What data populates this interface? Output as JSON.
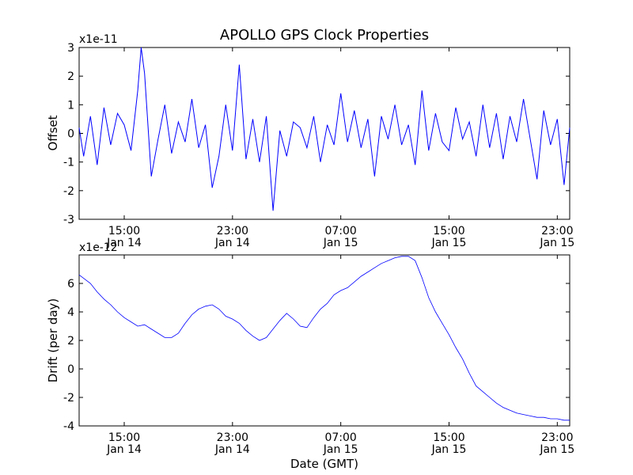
{
  "chart_data": [
    {
      "type": "line",
      "title": "APOLLO GPS Clock Properties",
      "xlabel": "",
      "ylabel": "Offset",
      "y_multiplier": "x1e-11",
      "ylim": [
        -3,
        3
      ],
      "yticks": [
        -3,
        -2,
        -1,
        0,
        1,
        2,
        3
      ],
      "xlim": [
        "Jan 14 11:40",
        "Jan 15 23:55"
      ],
      "xticks": [
        {
          "time": "Jan 14 15:00",
          "line1": "15:00",
          "line2": "Jan 14"
        },
        {
          "time": "Jan 14 23:00",
          "line1": "23:00",
          "line2": "Jan 14"
        },
        {
          "time": "Jan 15 07:00",
          "line1": "07:00",
          "line2": "Jan 15"
        },
        {
          "time": "Jan 15 15:00",
          "line1": "15:00",
          "line2": "Jan 15"
        },
        {
          "time": "Jan 15 23:00",
          "line1": "23:00",
          "line2": "Jan 15"
        }
      ],
      "color": "#0000ff",
      "series": [
        {
          "x": [
            "Jan 14 11:40",
            "Jan 14 12:00",
            "Jan 14 12:30",
            "Jan 14 13:00",
            "Jan 14 13:30",
            "Jan 14 14:00",
            "Jan 14 14:30",
            "Jan 14 15:00",
            "Jan 14 15:30",
            "Jan 14 16:00",
            "Jan 14 16:15",
            "Jan 14 16:30",
            "Jan 14 17:00",
            "Jan 14 17:30",
            "Jan 14 18:00",
            "Jan 14 18:30",
            "Jan 14 19:00",
            "Jan 14 19:30",
            "Jan 14 20:00",
            "Jan 14 20:30",
            "Jan 14 21:00",
            "Jan 14 21:30",
            "Jan 14 22:00",
            "Jan 14 22:30",
            "Jan 14 23:00",
            "Jan 14 23:30",
            "Jan 15 00:00",
            "Jan 15 00:30",
            "Jan 15 01:00",
            "Jan 15 01:30",
            "Jan 15 02:00",
            "Jan 15 02:30",
            "Jan 15 03:00",
            "Jan 15 03:30",
            "Jan 15 04:00",
            "Jan 15 04:30",
            "Jan 15 05:00",
            "Jan 15 05:30",
            "Jan 15 06:00",
            "Jan 15 06:30",
            "Jan 15 07:00",
            "Jan 15 07:30",
            "Jan 15 08:00",
            "Jan 15 08:30",
            "Jan 15 09:00",
            "Jan 15 09:30",
            "Jan 15 10:00",
            "Jan 15 10:30",
            "Jan 15 11:00",
            "Jan 15 11:30",
            "Jan 15 12:00",
            "Jan 15 12:30",
            "Jan 15 13:00",
            "Jan 15 13:30",
            "Jan 15 14:00",
            "Jan 15 14:30",
            "Jan 15 15:00",
            "Jan 15 15:30",
            "Jan 15 16:00",
            "Jan 15 16:30",
            "Jan 15 17:00",
            "Jan 15 17:30",
            "Jan 15 18:00",
            "Jan 15 18:30",
            "Jan 15 19:00",
            "Jan 15 19:30",
            "Jan 15 20:00",
            "Jan 15 20:30",
            "Jan 15 21:00",
            "Jan 15 21:30",
            "Jan 15 22:00",
            "Jan 15 22:30",
            "Jan 15 23:00",
            "Jan 15 23:30",
            "Jan 15 23:55"
          ],
          "values": [
            0.2,
            -0.8,
            0.6,
            -1.1,
            0.9,
            -0.4,
            0.7,
            0.3,
            -0.6,
            1.5,
            3.0,
            2.1,
            -1.5,
            -0.2,
            1.0,
            -0.7,
            0.4,
            -0.3,
            1.2,
            -0.5,
            0.3,
            -1.9,
            -0.8,
            1.0,
            -0.6,
            2.4,
            -0.9,
            0.5,
            -1.0,
            0.6,
            -2.7,
            0.1,
            -0.8,
            0.4,
            0.2,
            -0.5,
            0.6,
            -1.0,
            0.3,
            -0.4,
            1.4,
            -0.3,
            0.8,
            -0.5,
            0.5,
            -1.5,
            0.6,
            -0.2,
            1.0,
            -0.4,
            0.3,
            -1.1,
            1.5,
            -0.6,
            0.7,
            -0.3,
            -0.6,
            0.9,
            -0.2,
            0.4,
            -0.8,
            1.0,
            -0.5,
            0.7,
            -0.9,
            0.6,
            -0.3,
            1.2,
            -0.2,
            -1.6,
            0.8,
            -0.4,
            0.5,
            -1.8,
            0.2
          ]
        }
      ]
    },
    {
      "type": "line",
      "title": "",
      "xlabel": "Date (GMT)",
      "ylabel": "Drift (per day)",
      "y_multiplier": "x1e-12",
      "ylim": [
        -4,
        8
      ],
      "yticks": [
        -4,
        -2,
        0,
        2,
        4,
        6
      ],
      "xlim": [
        "Jan 14 11:40",
        "Jan 15 23:55"
      ],
      "xticks": [
        {
          "time": "Jan 14 15:00",
          "line1": "15:00",
          "line2": "Jan 14"
        },
        {
          "time": "Jan 14 23:00",
          "line1": "23:00",
          "line2": "Jan 14"
        },
        {
          "time": "Jan 15 07:00",
          "line1": "07:00",
          "line2": "Jan 15"
        },
        {
          "time": "Jan 15 15:00",
          "line1": "15:00",
          "line2": "Jan 15"
        },
        {
          "time": "Jan 15 23:00",
          "line1": "23:00",
          "line2": "Jan 15"
        }
      ],
      "color": "#0000ff",
      "series": [
        {
          "x": [
            "Jan 14 11:40",
            "Jan 14 12:30",
            "Jan 14 13:00",
            "Jan 14 13:30",
            "Jan 14 14:00",
            "Jan 14 14:30",
            "Jan 14 15:00",
            "Jan 14 15:30",
            "Jan 14 16:00",
            "Jan 14 16:30",
            "Jan 14 17:00",
            "Jan 14 17:30",
            "Jan 14 18:00",
            "Jan 14 18:30",
            "Jan 14 19:00",
            "Jan 14 19:30",
            "Jan 14 20:00",
            "Jan 14 20:30",
            "Jan 14 21:00",
            "Jan 14 21:30",
            "Jan 14 22:00",
            "Jan 14 22:30",
            "Jan 14 23:00",
            "Jan 14 23:30",
            "Jan 15 00:00",
            "Jan 15 00:30",
            "Jan 15 01:00",
            "Jan 15 01:30",
            "Jan 15 02:00",
            "Jan 15 02:30",
            "Jan 15 03:00",
            "Jan 15 03:30",
            "Jan 15 04:00",
            "Jan 15 04:30",
            "Jan 15 05:00",
            "Jan 15 05:30",
            "Jan 15 06:00",
            "Jan 15 06:30",
            "Jan 15 07:00",
            "Jan 15 07:30",
            "Jan 15 08:00",
            "Jan 15 08:30",
            "Jan 15 09:00",
            "Jan 15 09:30",
            "Jan 15 10:00",
            "Jan 15 10:30",
            "Jan 15 11:00",
            "Jan 15 11:30",
            "Jan 15 12:00",
            "Jan 15 12:30",
            "Jan 15 13:00",
            "Jan 15 13:30",
            "Jan 15 14:00",
            "Jan 15 14:30",
            "Jan 15 15:00",
            "Jan 15 15:30",
            "Jan 15 16:00",
            "Jan 15 16:30",
            "Jan 15 17:00",
            "Jan 15 17:30",
            "Jan 15 18:00",
            "Jan 15 18:30",
            "Jan 15 19:00",
            "Jan 15 19:30",
            "Jan 15 20:00",
            "Jan 15 20:30",
            "Jan 15 21:00",
            "Jan 15 21:30",
            "Jan 15 22:00",
            "Jan 15 22:30",
            "Jan 15 23:00",
            "Jan 15 23:30",
            "Jan 15 23:55"
          ],
          "values": [
            6.6,
            6.0,
            5.4,
            4.9,
            4.5,
            4.0,
            3.6,
            3.3,
            3.0,
            3.1,
            2.8,
            2.5,
            2.2,
            2.2,
            2.5,
            3.2,
            3.8,
            4.2,
            4.4,
            4.5,
            4.2,
            3.7,
            3.5,
            3.2,
            2.7,
            2.3,
            2.0,
            2.2,
            2.8,
            3.4,
            3.9,
            3.5,
            3.0,
            2.9,
            3.6,
            4.2,
            4.6,
            5.2,
            5.5,
            5.7,
            6.1,
            6.5,
            6.8,
            7.1,
            7.4,
            7.6,
            7.8,
            7.9,
            7.9,
            7.6,
            6.4,
            5.0,
            4.0,
            3.2,
            2.4,
            1.5,
            0.7,
            -0.3,
            -1.2,
            -1.6,
            -2.0,
            -2.4,
            -2.7,
            -2.9,
            -3.1,
            -3.2,
            -3.3,
            -3.4,
            -3.4,
            -3.5,
            -3.5,
            -3.6,
            -3.6
          ]
        }
      ]
    }
  ]
}
